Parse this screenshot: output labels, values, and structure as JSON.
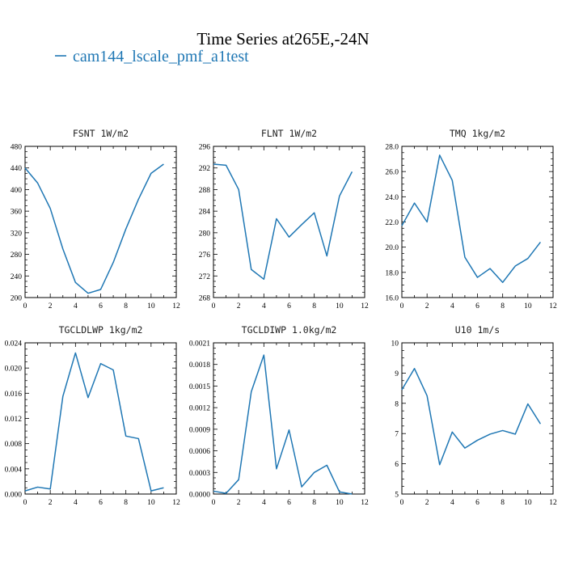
{
  "figure": {
    "title": "Time Series at265E,-24N",
    "legend": [
      {
        "label": "cam144_lscale_pmf_a1test",
        "color": "#1f77b4"
      }
    ]
  },
  "chart_data": [
    {
      "type": "line",
      "title": "FSNT   1W/m2",
      "x": [
        0,
        1,
        2,
        3,
        4,
        5,
        6,
        7,
        8,
        9,
        10,
        11
      ],
      "series": [
        {
          "values": [
            440,
            412,
            365,
            290,
            228,
            208,
            215,
            265,
            327,
            382,
            430,
            447
          ]
        }
      ],
      "xlim": [
        0,
        12
      ],
      "ylim": [
        200,
        480
      ],
      "xticks": [
        0,
        2,
        4,
        6,
        8,
        10,
        12
      ],
      "yticks": [
        200,
        240,
        280,
        320,
        360,
        400,
        440,
        480
      ],
      "ytick_labels": [
        "200",
        "240",
        "280",
        "320",
        "360",
        "400",
        "440",
        "480"
      ]
    },
    {
      "type": "line",
      "title": "FLNT   1W/m2",
      "x": [
        0,
        1,
        2,
        3,
        4,
        5,
        6,
        7,
        8,
        9,
        10,
        11
      ],
      "series": [
        {
          "values": [
            292.7,
            292.5,
            288.0,
            273.2,
            271.4,
            282.6,
            279.2,
            281.5,
            283.7,
            275.7,
            286.8,
            291.3
          ]
        }
      ],
      "xlim": [
        0,
        12
      ],
      "ylim": [
        268,
        296
      ],
      "xticks": [
        0,
        2,
        4,
        6,
        8,
        10,
        12
      ],
      "yticks": [
        268,
        272,
        276,
        280,
        284,
        288,
        292,
        296
      ],
      "ytick_labels": [
        "268",
        "272",
        "276",
        "280",
        "284",
        "288",
        "292",
        "296"
      ]
    },
    {
      "type": "line",
      "title": "TMQ   1kg/m2",
      "x": [
        0,
        1,
        2,
        3,
        4,
        5,
        6,
        7,
        8,
        9,
        10,
        11
      ],
      "series": [
        {
          "values": [
            21.7,
            23.5,
            22.0,
            27.3,
            25.3,
            19.2,
            17.6,
            18.3,
            17.2,
            18.5,
            19.1,
            20.4
          ]
        }
      ],
      "xlim": [
        0,
        12
      ],
      "ylim": [
        16,
        28
      ],
      "xticks": [
        0,
        2,
        4,
        6,
        8,
        10,
        12
      ],
      "yticks": [
        16,
        18,
        20,
        22,
        24,
        26,
        28
      ],
      "ytick_labels": [
        "16.0",
        "18.0",
        "20.0",
        "22.0",
        "24.0",
        "26.0",
        "28.0"
      ]
    },
    {
      "type": "line",
      "title": "TGCLDLWP   1kg/m2",
      "x": [
        0,
        1,
        2,
        3,
        4,
        5,
        6,
        7,
        8,
        9,
        10,
        11
      ],
      "series": [
        {
          "values": [
            0.0005,
            0.0011,
            0.0008,
            0.0155,
            0.0224,
            0.0153,
            0.0207,
            0.0197,
            0.0092,
            0.0088,
            0.0005,
            0.001
          ]
        }
      ],
      "xlim": [
        0,
        12
      ],
      "ylim": [
        0,
        0.024
      ],
      "xticks": [
        0,
        2,
        4,
        6,
        8,
        10,
        12
      ],
      "yticks": [
        0,
        0.004,
        0.008,
        0.012,
        0.016,
        0.02,
        0.024
      ],
      "ytick_labels": [
        "0.000",
        "0.004",
        "0.008",
        "0.012",
        "0.016",
        "0.020",
        "0.024"
      ]
    },
    {
      "type": "line",
      "title": "TGCLDIWP   1.0kg/m2",
      "x": [
        0,
        1,
        2,
        3,
        4,
        5,
        6,
        7,
        8,
        9,
        10,
        11
      ],
      "series": [
        {
          "values": [
            4e-05,
            1e-05,
            0.0002,
            0.00142,
            0.00193,
            0.00035,
            0.00089,
            0.0001,
            0.0003,
            0.0004,
            3e-05,
            0.0
          ]
        }
      ],
      "xlim": [
        0,
        12
      ],
      "ylim": [
        0,
        0.0021
      ],
      "xticks": [
        0,
        2,
        4,
        6,
        8,
        10,
        12
      ],
      "yticks": [
        0,
        0.0003,
        0.0006,
        0.0009,
        0.0012,
        0.0015,
        0.0018,
        0.0021
      ],
      "ytick_labels": [
        "0.0000",
        "0.0003",
        "0.0006",
        "0.0009",
        "0.0012",
        "0.0015",
        "0.0018",
        "0.0021"
      ]
    },
    {
      "type": "line",
      "title": "U10   1m/s",
      "x": [
        0,
        1,
        2,
        3,
        4,
        5,
        6,
        7,
        8,
        9,
        10,
        11
      ],
      "series": [
        {
          "values": [
            8.45,
            9.15,
            8.25,
            5.97,
            7.05,
            6.52,
            6.78,
            6.98,
            7.1,
            6.98,
            7.98,
            7.32
          ]
        }
      ],
      "xlim": [
        0,
        12
      ],
      "ylim": [
        5,
        10
      ],
      "xticks": [
        0,
        2,
        4,
        6,
        8,
        10,
        12
      ],
      "yticks": [
        5,
        6,
        7,
        8,
        9,
        10
      ],
      "ytick_labels": [
        "5",
        "6",
        "7",
        "8",
        "9",
        "10"
      ]
    }
  ]
}
